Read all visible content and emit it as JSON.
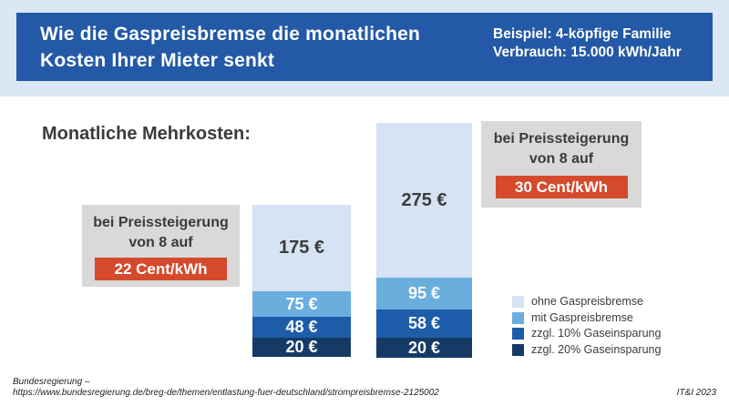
{
  "header": {
    "title_line1": "Wie die Gaspreisbremse die monatlichen",
    "title_line2": "Kosten Ihrer Mieter senkt",
    "example_line1": "Beispiel: 4-köpfige Familie",
    "example_line2": "Verbrauch: 15.000 kWh/Jahr"
  },
  "section": {
    "heading": "Monatliche Mehrkosten:"
  },
  "info_boxes": [
    {
      "line1": "bei Preissteigerung",
      "line2": "von 8 auf",
      "badge": "22 Cent/kWh"
    },
    {
      "line1": "bei Preissteigerung",
      "line2": "von 8 auf",
      "badge": "30 Cent/kWh"
    }
  ],
  "colors": {
    "band_bg": "#dbe7f3",
    "header_bg": "#2359a6",
    "info_box_bg": "#d9d9d9",
    "badge_bg": "#d54a2d",
    "text_dark": "#3b3b3b",
    "seg_ohne_gaspreisbremse": "#d5e3f4",
    "seg_mit_gaspreisbremse": "#6aaede",
    "seg_zzgl_10": "#1d5ca9",
    "seg_zzgl_20": "#163a66"
  },
  "chart_data": {
    "type": "bar",
    "stacked": true,
    "title": "Monatliche Mehrkosten:",
    "unit": "€ pro Monat",
    "categories": [
      "bei Preissteigerung von 8 auf 22 Cent/kWh",
      "bei Preissteigerung von 8 auf 30 Cent/kWh"
    ],
    "series": [
      {
        "name": "ohne Gaspreisbremse",
        "color": "#d5e3f4",
        "values": [
          175,
          275
        ]
      },
      {
        "name": "mit Gaspreisbremse",
        "color": "#6aaede",
        "values": [
          75,
          95
        ]
      },
      {
        "name": "zzgl. 10% Gaseinsparung",
        "color": "#1d5ca9",
        "values": [
          48,
          58
        ]
      },
      {
        "name": "zzgl. 20% Gaseinsparung",
        "color": "#163a66",
        "values": [
          20,
          20
        ]
      }
    ],
    "legend_position": "bottom-right",
    "grid": false,
    "display": {
      "bars": [
        {
          "name": "bar-22-cent",
          "x": 277,
          "top": 225,
          "width": 108,
          "segments": [
            {
              "label": "175 €",
              "value": 175,
              "series": "ohne Gaspreisbremse",
              "color": "#d5e3f4",
              "height": 95,
              "text_color": "#3b3b3b"
            },
            {
              "label": "75 €",
              "value": 75,
              "series": "mit Gaspreisbremse",
              "color": "#6aaede",
              "height": 28,
              "text_color": "#ffffff"
            },
            {
              "label": "48 €",
              "value": 48,
              "series": "zzgl. 10% Gaseinsparung",
              "color": "#1d5ca9",
              "height": 23,
              "text_color": "#ffffff"
            },
            {
              "label": "20 €",
              "value": 20,
              "series": "zzgl. 20% Gaseinsparung",
              "color": "#163a66",
              "height": 21,
              "text_color": "#ffffff"
            }
          ]
        },
        {
          "name": "bar-30-cent",
          "x": 413,
          "top": 135,
          "width": 105,
          "segments": [
            {
              "label": "275 €",
              "value": 275,
              "series": "ohne Gaspreisbremse",
              "color": "#d5e3f4",
              "height": 170,
              "text_color": "#3b3b3b"
            },
            {
              "label": "95 €",
              "value": 95,
              "series": "mit Gaspreisbremse",
              "color": "#6aaede",
              "height": 35,
              "text_color": "#ffffff"
            },
            {
              "label": "58 €",
              "value": 58,
              "series": "zzgl. 10% Gaseinsparung",
              "color": "#1d5ca9",
              "height": 31,
              "text_color": "#ffffff"
            },
            {
              "label": "20 €",
              "value": 20,
              "series": "zzgl. 20% Gaseinsparung",
              "color": "#163a66",
              "height": 22,
              "text_color": "#ffffff"
            }
          ]
        }
      ]
    }
  },
  "footer": {
    "source_line1": "Bundesregierung –",
    "source_line2": "https://www.bundesregierung.de/breg-de/themen/entlastung-fuer-deutschland/strompreisbremse-2125002",
    "credit": "IT&I 2023"
  }
}
